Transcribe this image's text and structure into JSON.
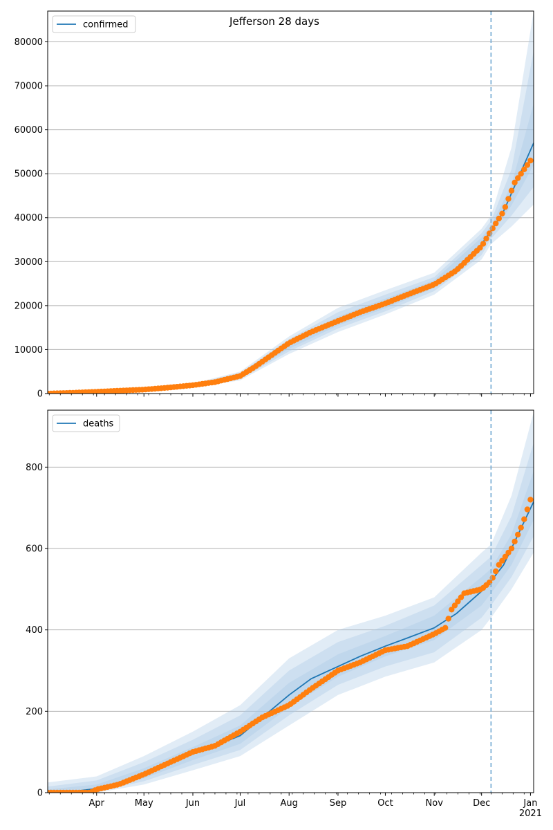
{
  "figure": {
    "title": "Jefferson 28 days",
    "colors": {
      "model": "#1f77b4",
      "observed": "#ff7f0e",
      "band": "#aac8e6",
      "grid": "#b0b0b0",
      "forecast_line": "#7fb0d6"
    }
  },
  "chart_data": [
    {
      "type": "line",
      "title": "Jefferson 28 days",
      "legend": {
        "label": "confirmed",
        "placement": "top-left"
      },
      "xlabel": "",
      "ylabel": "",
      "xlim": [
        "2020-03-01",
        "2021-01-03"
      ],
      "ylim": [
        0,
        87000
      ],
      "yticks": [
        0,
        10000,
        20000,
        30000,
        40000,
        50000,
        60000,
        70000,
        80000
      ],
      "xticks": [],
      "grid": "horizontal",
      "forecast_start": "2020-12-07",
      "model_line": {
        "x": [
          "2020-03-01",
          "2020-03-15",
          "2020-04-01",
          "2020-04-15",
          "2020-05-01",
          "2020-05-15",
          "2020-06-01",
          "2020-06-15",
          "2020-07-01",
          "2020-07-15",
          "2020-08-01",
          "2020-08-15",
          "2020-09-01",
          "2020-09-15",
          "2020-10-01",
          "2020-10-15",
          "2020-11-01",
          "2020-11-15",
          "2020-12-01",
          "2020-12-07",
          "2020-12-15",
          "2021-01-03"
        ],
        "y": [
          0,
          100,
          300,
          500,
          800,
          1200,
          1800,
          2500,
          4000,
          7000,
          11000,
          14000,
          16500,
          18500,
          20500,
          22500,
          25000,
          28500,
          34000,
          37000,
          41500,
          57000
        ]
      },
      "bands": [
        {
          "x": [
            "2020-03-01",
            "2020-04-01",
            "2020-05-01",
            "2020-06-01",
            "2020-07-01",
            "2020-08-01",
            "2020-09-01",
            "2020-10-01",
            "2020-11-01",
            "2020-12-01",
            "2020-12-07",
            "2020-12-20",
            "2021-01-03"
          ],
          "lower": [
            0,
            150,
            500,
            1300,
            3000,
            9000,
            14000,
            18000,
            22500,
            30500,
            34000,
            38000,
            43000
          ],
          "upper": [
            300,
            450,
            1100,
            2300,
            5000,
            13000,
            19500,
            23500,
            27500,
            37500,
            40500,
            56000,
            87000
          ]
        },
        {
          "x": [
            "2020-03-01",
            "2020-04-01",
            "2020-05-01",
            "2020-06-01",
            "2020-07-01",
            "2020-08-01",
            "2020-09-01",
            "2020-10-01",
            "2020-11-01",
            "2020-12-01",
            "2020-12-07",
            "2020-12-20",
            "2021-01-03"
          ],
          "lower": [
            0,
            200,
            600,
            1450,
            3300,
            9600,
            14800,
            18700,
            23300,
            31500,
            35200,
            40500,
            47000
          ],
          "upper": [
            200,
            400,
            1000,
            2150,
            4700,
            12400,
            18500,
            22500,
            26500,
            36500,
            39300,
            51000,
            78000
          ]
        },
        {
          "x": [
            "2020-03-01",
            "2020-04-01",
            "2020-05-01",
            "2020-06-01",
            "2020-07-01",
            "2020-08-01",
            "2020-09-01",
            "2020-10-01",
            "2020-11-01",
            "2020-12-01",
            "2020-12-07",
            "2020-12-20",
            "2021-01-03"
          ],
          "lower": [
            0,
            240,
            680,
            1600,
            3600,
            10200,
            15500,
            19400,
            24000,
            32500,
            36200,
            42800,
            52000
          ],
          "upper": [
            120,
            360,
            920,
            2000,
            4400,
            11800,
            17500,
            21600,
            25800,
            35500,
            38200,
            47500,
            66000
          ]
        }
      ],
      "observed": {
        "x": [
          "2020-03-01",
          "2020-03-15",
          "2020-04-01",
          "2020-04-15",
          "2020-05-01",
          "2020-05-15",
          "2020-06-01",
          "2020-06-15",
          "2020-07-01",
          "2020-07-10",
          "2020-07-20",
          "2020-08-01",
          "2020-08-15",
          "2020-09-01",
          "2020-09-15",
          "2020-10-01",
          "2020-10-15",
          "2020-11-01",
          "2020-11-15",
          "2020-12-01",
          "2020-12-07",
          "2020-12-15",
          "2020-12-22",
          "2021-01-01"
        ],
        "y": [
          0,
          150,
          400,
          650,
          900,
          1300,
          1900,
          2600,
          4000,
          6000,
          8500,
          11500,
          14000,
          16500,
          18500,
          20500,
          22500,
          24800,
          28000,
          33500,
          37000,
          41500,
          48000,
          53000
        ]
      }
    },
    {
      "type": "line",
      "title": "",
      "legend": {
        "label": "deaths",
        "placement": "top-left"
      },
      "xlabel": "",
      "ylabel": "",
      "xlim": [
        "2020-03-01",
        "2021-01-03"
      ],
      "ylim": [
        0,
        940
      ],
      "yticks": [
        0,
        200,
        400,
        600,
        800
      ],
      "xticks": [
        "Apr",
        "May",
        "Jun",
        "Jul",
        "Aug",
        "Sep",
        "Oct",
        "Nov",
        "Dec",
        "Jan"
      ],
      "xtick_year": "2021",
      "grid": "horizontal",
      "forecast_start": "2020-12-07",
      "model_line": {
        "x": [
          "2020-03-01",
          "2020-03-15",
          "2020-04-01",
          "2020-04-15",
          "2020-05-01",
          "2020-05-15",
          "2020-06-01",
          "2020-06-15",
          "2020-07-01",
          "2020-07-15",
          "2020-08-01",
          "2020-08-15",
          "2020-09-01",
          "2020-09-15",
          "2020-10-01",
          "2020-10-15",
          "2020-11-01",
          "2020-11-15",
          "2020-12-01",
          "2020-12-07",
          "2020-12-15",
          "2021-01-03"
        ],
        "y": [
          0,
          2,
          10,
          25,
          45,
          70,
          95,
          115,
          140,
          185,
          240,
          280,
          310,
          335,
          360,
          380,
          405,
          440,
          495,
          520,
          560,
          715
        ]
      },
      "bands": [
        {
          "x": [
            "2020-03-01",
            "2020-04-01",
            "2020-05-01",
            "2020-06-01",
            "2020-07-01",
            "2020-08-01",
            "2020-09-01",
            "2020-10-01",
            "2020-11-01",
            "2020-12-01",
            "2020-12-07",
            "2020-12-20",
            "2021-01-03"
          ],
          "lower": [
            0,
            0,
            20,
            55,
            90,
            165,
            240,
            285,
            320,
            400,
            430,
            500,
            590
          ],
          "upper": [
            25,
            40,
            90,
            150,
            215,
            330,
            400,
            435,
            480,
            590,
            610,
            730,
            935
          ]
        },
        {
          "x": [
            "2020-03-01",
            "2020-04-01",
            "2020-05-01",
            "2020-06-01",
            "2020-07-01",
            "2020-08-01",
            "2020-09-01",
            "2020-10-01",
            "2020-11-01",
            "2020-12-01",
            "2020-12-07",
            "2020-12-20",
            "2021-01-03"
          ],
          "lower": [
            0,
            2,
            28,
            68,
            105,
            190,
            265,
            310,
            345,
            430,
            460,
            530,
            630
          ],
          "upper": [
            15,
            30,
            75,
            130,
            190,
            300,
            370,
            410,
            460,
            560,
            580,
            680,
            860
          ]
        },
        {
          "x": [
            "2020-03-01",
            "2020-04-01",
            "2020-05-01",
            "2020-06-01",
            "2020-07-01",
            "2020-08-01",
            "2020-09-01",
            "2020-10-01",
            "2020-11-01",
            "2020-12-01",
            "2020-12-07",
            "2020-12-20",
            "2021-01-03"
          ],
          "lower": [
            0,
            4,
            35,
            80,
            120,
            210,
            285,
            335,
            375,
            460,
            490,
            560,
            670
          ],
          "upper": [
            8,
            20,
            60,
            112,
            165,
            270,
            340,
            385,
            435,
            530,
            550,
            635,
            790
          ]
        }
      ],
      "observed": {
        "x": [
          "2020-03-01",
          "2020-03-28",
          "2020-04-01",
          "2020-04-15",
          "2020-05-01",
          "2020-05-15",
          "2020-06-01",
          "2020-06-15",
          "2020-07-01",
          "2020-07-15",
          "2020-08-01",
          "2020-08-15",
          "2020-09-01",
          "2020-09-15",
          "2020-10-01",
          "2020-10-15",
          "2020-11-01",
          "2020-11-08",
          "2020-11-12",
          "2020-11-20",
          "2020-12-01",
          "2020-12-07",
          "2020-12-12",
          "2020-12-20",
          "2020-12-27",
          "2021-01-01"
        ],
        "y": [
          0,
          0,
          8,
          20,
          45,
          70,
          100,
          115,
          150,
          185,
          215,
          255,
          300,
          320,
          350,
          360,
          390,
          405,
          450,
          490,
          500,
          520,
          560,
          600,
          660,
          720
        ]
      }
    }
  ]
}
